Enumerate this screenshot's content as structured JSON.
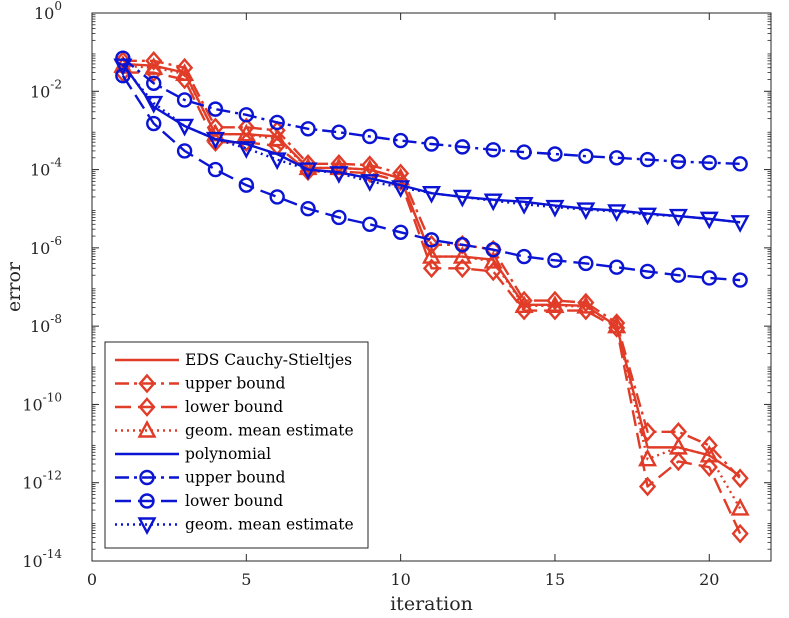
{
  "chart_data": {
    "type": "line",
    "xlabel": "iteration",
    "ylabel": "error",
    "xlim": [
      0,
      22
    ],
    "ylim": [
      1e-14,
      1
    ],
    "yscale": "log",
    "xticks": [
      0,
      5,
      10,
      15,
      20
    ],
    "yticks": [
      {
        "value": 1e-14,
        "base": "10",
        "exp": "-14"
      },
      {
        "value": 1e-12,
        "base": "10",
        "exp": "-12"
      },
      {
        "value": 1e-10,
        "base": "10",
        "exp": "-10"
      },
      {
        "value": 1e-08,
        "base": "10",
        "exp": "-8"
      },
      {
        "value": 1e-06,
        "base": "10",
        "exp": "-6"
      },
      {
        "value": 0.0001,
        "base": "10",
        "exp": "-4"
      },
      {
        "value": 0.01,
        "base": "10",
        "exp": "-2"
      },
      {
        "value": 1,
        "base": "10",
        "exp": "0"
      }
    ],
    "legend_position": "bottom-left",
    "series": [
      {
        "name": "EDS Cauchy-Stieltjes",
        "color": "#e03c28",
        "dash": "solid",
        "marker": "none",
        "x": [
          1,
          2,
          3,
          4,
          5,
          6,
          7,
          8,
          9,
          10,
          11,
          12,
          13,
          14,
          15,
          16,
          17,
          18,
          19,
          20,
          21
        ],
        "values": [
          0.05,
          0.045,
          0.03,
          0.0008,
          0.0008,
          0.0007,
          0.00011,
          0.00011,
          0.0001,
          6e-05,
          6e-07,
          6e-07,
          5e-07,
          3.5e-08,
          3.5e-08,
          3.3e-08,
          1e-08,
          8e-12,
          8e-12,
          5e-12,
          1.5e-12
        ]
      },
      {
        "name": "upper bound",
        "color": "#e03c28",
        "dash": "dashdot",
        "marker": "diamond",
        "x": [
          1,
          2,
          3,
          4,
          5,
          6,
          7,
          8,
          9,
          10,
          11,
          12,
          13,
          14,
          15,
          16,
          17,
          18,
          19,
          20,
          21
        ],
        "values": [
          0.06,
          0.06,
          0.04,
          0.0012,
          0.0012,
          0.001,
          0.00014,
          0.00014,
          0.00013,
          8e-05,
          1.2e-06,
          1.2e-06,
          9e-07,
          4.5e-08,
          4.5e-08,
          4e-08,
          1.2e-08,
          2e-11,
          2e-11,
          9e-12,
          1.3e-12
        ]
      },
      {
        "name": "lower bound",
        "color": "#e03c28",
        "dash": "dash",
        "marker": "diamond",
        "x": [
          1,
          2,
          3,
          4,
          5,
          6,
          7,
          8,
          9,
          10,
          11,
          12,
          13,
          14,
          15,
          16,
          17,
          18,
          19,
          20,
          21
        ],
        "values": [
          0.03,
          0.03,
          0.02,
          0.0005,
          0.0005,
          0.0004,
          9e-05,
          9e-05,
          8e-05,
          5e-05,
          3e-07,
          3e-07,
          2.5e-07,
          2.5e-08,
          2.5e-08,
          2.5e-08,
          9e-09,
          8e-13,
          3.5e-12,
          2.5e-12,
          5e-14
        ]
      },
      {
        "name": "geom. mean estimate",
        "color": "#e03c28",
        "dash": "dot",
        "marker": "triangle-up",
        "x": [
          1,
          2,
          3,
          4,
          5,
          6,
          7,
          8,
          9,
          10,
          11,
          12,
          13,
          14,
          15,
          16,
          17,
          18,
          19,
          20,
          21
        ],
        "values": [
          0.045,
          0.04,
          0.028,
          0.0008,
          0.0008,
          0.0006,
          0.00011,
          0.00011,
          0.0001,
          6e-05,
          6e-07,
          6e-07,
          4.5e-07,
          3.3e-08,
          3.3e-08,
          3.2e-08,
          1e-08,
          4e-12,
          8e-12,
          5e-12,
          2.2e-13
        ]
      },
      {
        "name": "polynomial",
        "color": "#0a14d2",
        "dash": "solid",
        "marker": "none",
        "x": [
          1,
          2,
          3,
          4,
          5,
          6,
          7,
          8,
          9,
          10,
          11,
          12,
          13,
          14,
          15,
          16,
          17,
          18,
          19,
          20,
          21
        ],
        "values": [
          0.05,
          0.004,
          0.0013,
          0.0006,
          0.00045,
          0.00025,
          0.0001,
          8.5e-05,
          6e-05,
          4e-05,
          2.5e-05,
          2e-05,
          1.7e-05,
          1.5e-05,
          1.2e-05,
          1e-05,
          9e-06,
          7.5e-06,
          6.5e-06,
          5.5e-06,
          4.5e-06
        ]
      },
      {
        "name": "upper bound",
        "color": "#0a14d2",
        "dash": "dashdot",
        "marker": "circle",
        "x": [
          1,
          2,
          3,
          4,
          5,
          6,
          7,
          8,
          9,
          10,
          11,
          12,
          13,
          14,
          15,
          16,
          17,
          18,
          19,
          20,
          21
        ],
        "values": [
          0.07,
          0.016,
          0.006,
          0.0035,
          0.0025,
          0.0016,
          0.0011,
          0.0009,
          0.0007,
          0.00055,
          0.00045,
          0.00038,
          0.00032,
          0.00028,
          0.00025,
          0.00022,
          0.0002,
          0.00018,
          0.00016,
          0.00015,
          0.00014
        ]
      },
      {
        "name": "lower bound",
        "color": "#0a14d2",
        "dash": "dash",
        "marker": "circle",
        "x": [
          1,
          2,
          3,
          4,
          5,
          6,
          7,
          8,
          9,
          10,
          11,
          12,
          13,
          14,
          15,
          16,
          17,
          18,
          19,
          20,
          21
        ],
        "values": [
          0.025,
          0.0015,
          0.0003,
          0.0001,
          4e-05,
          2e-05,
          1e-05,
          6e-06,
          4e-06,
          2.5e-06,
          1.6e-06,
          1.2e-06,
          9e-07,
          6e-07,
          4.8e-07,
          4e-07,
          3.2e-07,
          2.5e-07,
          2e-07,
          1.7e-07,
          1.5e-07
        ]
      },
      {
        "name": "geom. mean estimate",
        "color": "#0a14d2",
        "dash": "dot",
        "marker": "triangle-down",
        "x": [
          1,
          2,
          3,
          4,
          5,
          6,
          7,
          8,
          9,
          10,
          11,
          12,
          13,
          14,
          15,
          16,
          17,
          18,
          19,
          20,
          21
        ],
        "values": [
          0.045,
          0.005,
          0.0013,
          0.0006,
          0.00035,
          0.00018,
          0.0001,
          8e-05,
          5e-05,
          3.5e-05,
          2.5e-05,
          2e-05,
          1.6e-05,
          1.3e-05,
          1.1e-05,
          9.5e-06,
          8.5e-06,
          7e-06,
          6.5e-06,
          5.5e-06,
          4.5e-06
        ]
      }
    ]
  }
}
